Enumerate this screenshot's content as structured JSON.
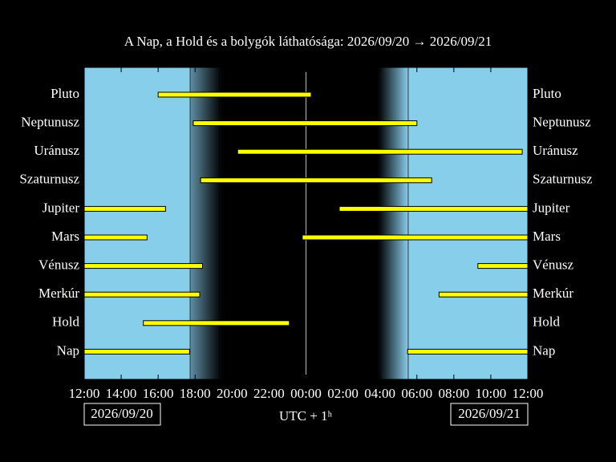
{
  "chart_data": {
    "type": "range-bar",
    "title": "A Nap, a Hold és a bolygók láthatósága: 2026/09/20 → 2026/09/21",
    "xlabel": "UTC + 1ʰ",
    "date_start": "2026/09/20",
    "date_end": "2026/09/21",
    "xlim": [
      12,
      36
    ],
    "xticks": [
      {
        "value": 12,
        "label": "12:00"
      },
      {
        "value": 14,
        "label": "14:00"
      },
      {
        "value": 16,
        "label": "16:00"
      },
      {
        "value": 18,
        "label": "18:00"
      },
      {
        "value": 20,
        "label": "20:00"
      },
      {
        "value": 22,
        "label": "22:00"
      },
      {
        "value": 24,
        "label": "00:00"
      },
      {
        "value": 26,
        "label": "02:00"
      },
      {
        "value": 28,
        "label": "04:00"
      },
      {
        "value": 30,
        "label": "06:00"
      },
      {
        "value": 32,
        "label": "08:00"
      },
      {
        "value": 34,
        "label": "10:00"
      },
      {
        "value": 36,
        "label": "12:00"
      }
    ],
    "midnight": 24,
    "sunset": 17.73,
    "night_start": 19.42,
    "night_end": 27.93,
    "sunrise": 29.53,
    "day_color": "#87ceeb",
    "bar_color": "#ffff00",
    "series": [
      {
        "name": "Pluto",
        "ranges": [
          [
            16.0,
            24.28
          ]
        ]
      },
      {
        "name": "Neptunusz",
        "ranges": [
          [
            17.9,
            30.0
          ]
        ]
      },
      {
        "name": "Uránusz",
        "ranges": [
          [
            20.3,
            35.7
          ]
        ]
      },
      {
        "name": "Szaturnusz",
        "ranges": [
          [
            18.3,
            30.8
          ]
        ]
      },
      {
        "name": "Jupiter",
        "ranges": [
          [
            12,
            16.4
          ],
          [
            25.8,
            36
          ]
        ]
      },
      {
        "name": "Mars",
        "ranges": [
          [
            12,
            15.4
          ],
          [
            23.8,
            36
          ]
        ]
      },
      {
        "name": "Vénusz",
        "ranges": [
          [
            12,
            18.4
          ],
          [
            33.3,
            36
          ]
        ]
      },
      {
        "name": "Merkúr",
        "ranges": [
          [
            12,
            18.25
          ],
          [
            31.2,
            36
          ]
        ]
      },
      {
        "name": "Hold",
        "ranges": [
          [
            15.2,
            23.1
          ]
        ]
      },
      {
        "name": "Nap",
        "ranges": [
          [
            12,
            17.7
          ],
          [
            29.5,
            36
          ]
        ]
      }
    ]
  }
}
